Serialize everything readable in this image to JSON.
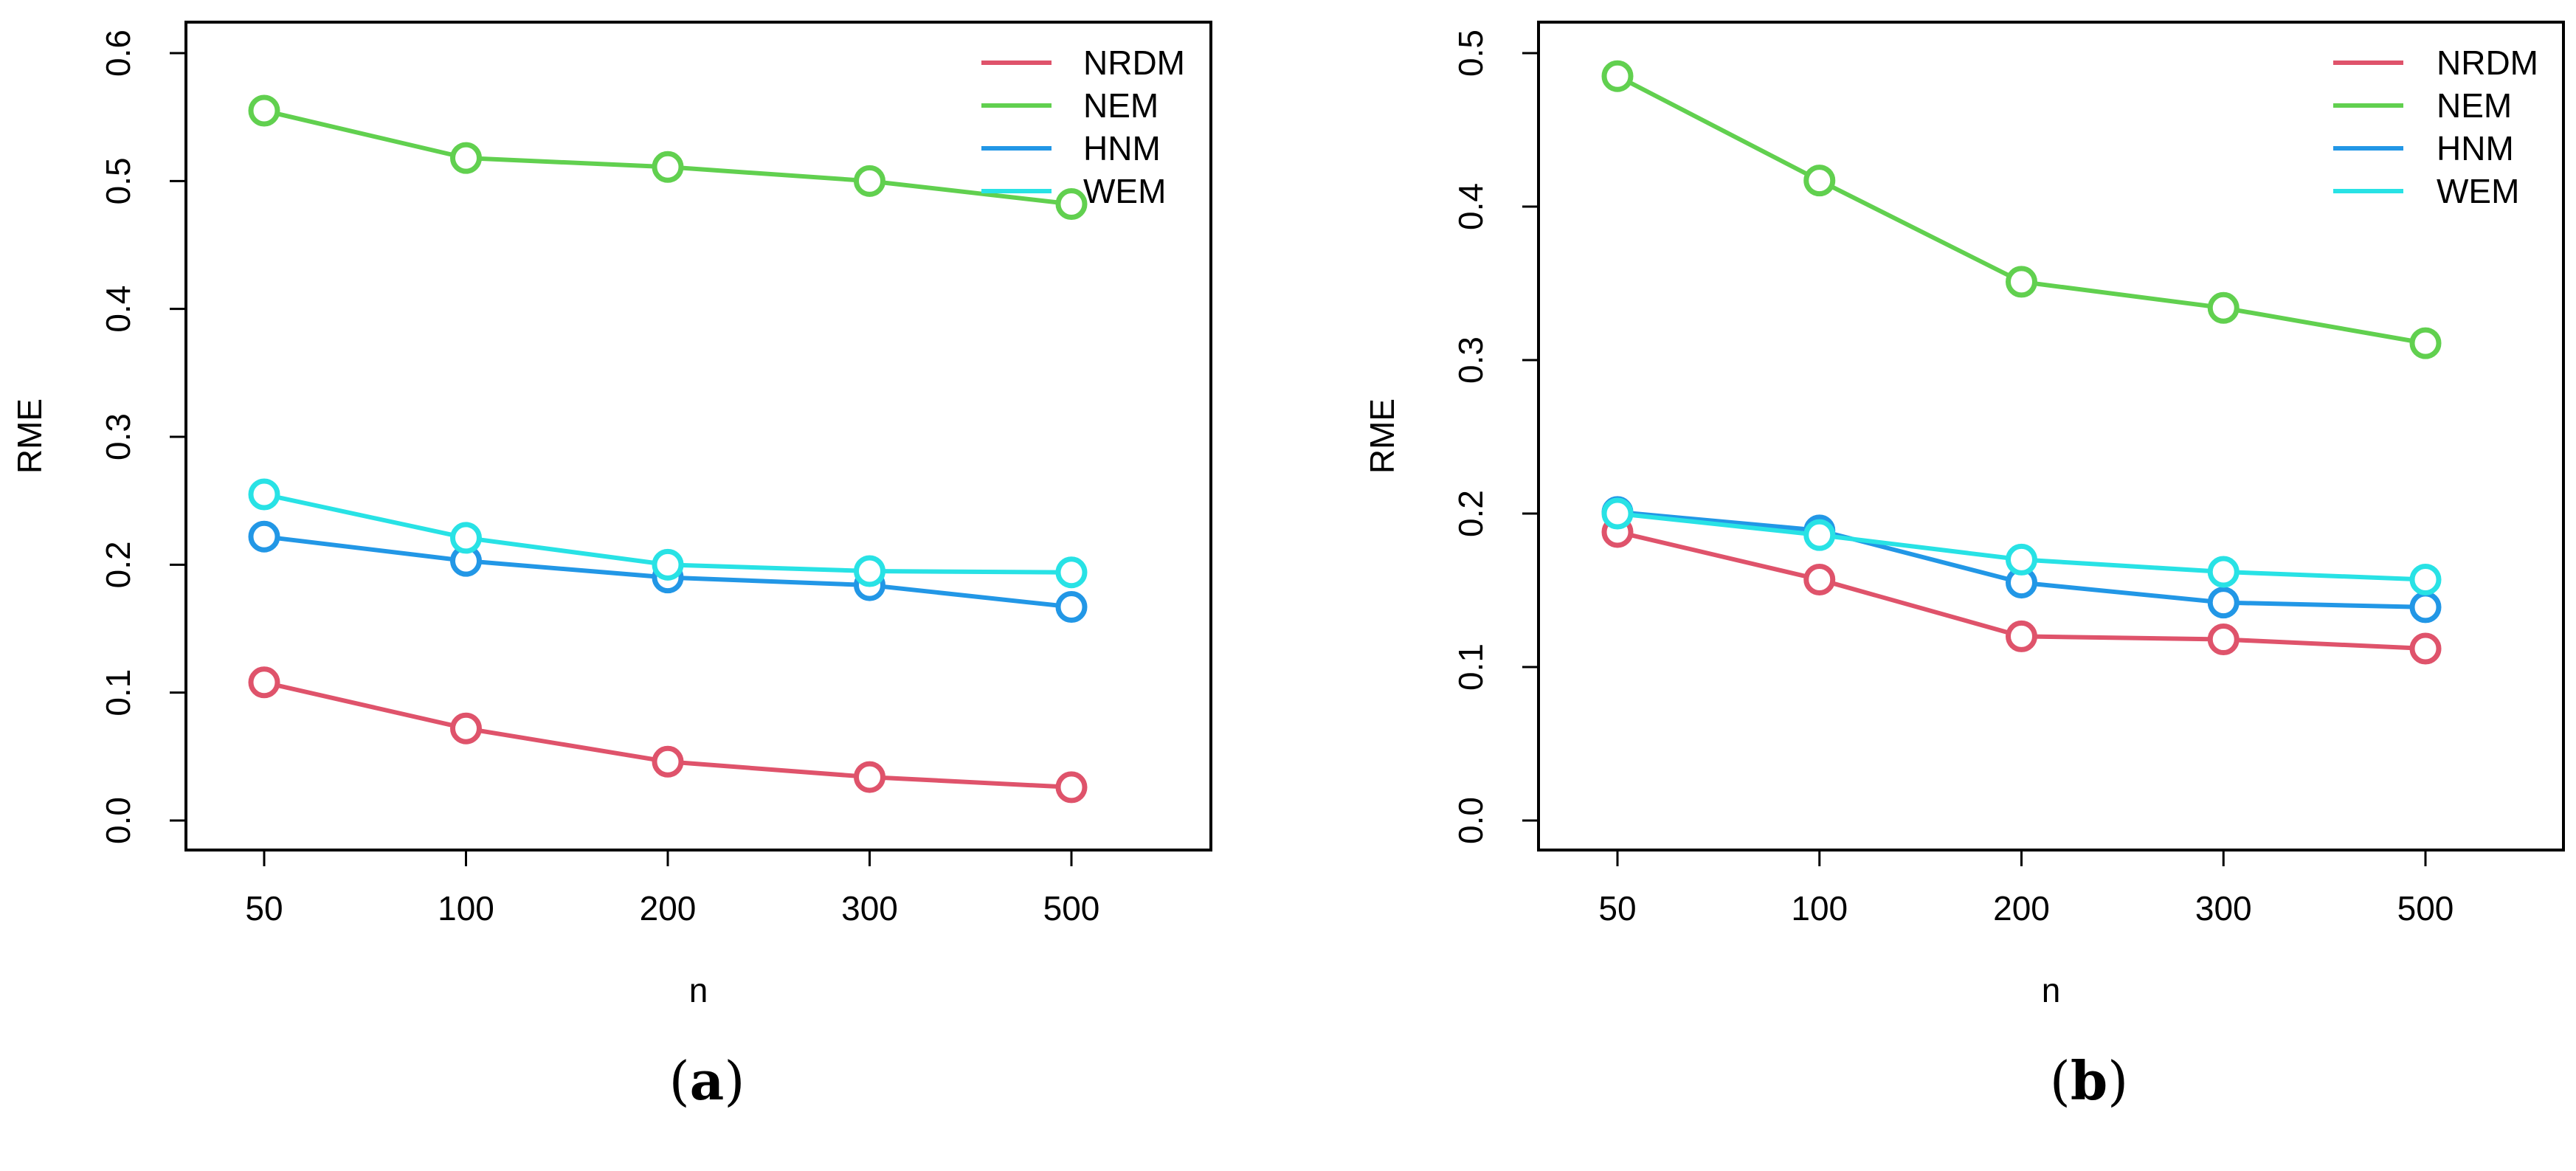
{
  "figure": {
    "colors": {
      "NRDM": "#DF536B",
      "NEM": "#61D04F",
      "HNM": "#2297E6",
      "WEM": "#28E2E5",
      "axis": "#000000"
    }
  },
  "chart_data": [
    {
      "type": "line",
      "panel_label": "a",
      "caption_open": "(",
      "caption_close": ")",
      "xlabel": "n",
      "ylabel": "RME",
      "categories": [
        "50",
        "100",
        "200",
        "300",
        "500"
      ],
      "ylim": [
        0.0,
        0.6
      ],
      "yticks": [
        0.0,
        0.1,
        0.2,
        0.3,
        0.4,
        0.5,
        0.6
      ],
      "ytick_labels": [
        "0.0",
        "0.1",
        "0.2",
        "0.3",
        "0.4",
        "0.5",
        "0.6"
      ],
      "legend_position": "top-right",
      "series": [
        {
          "name": "NRDM",
          "values": [
            0.108,
            0.072,
            0.046,
            0.034,
            0.026
          ]
        },
        {
          "name": "NEM",
          "values": [
            0.555,
            0.518,
            0.511,
            0.5,
            0.482
          ]
        },
        {
          "name": "HNM",
          "values": [
            0.222,
            0.203,
            0.19,
            0.184,
            0.167
          ]
        },
        {
          "name": "WEM",
          "values": [
            0.255,
            0.221,
            0.2,
            0.195,
            0.194
          ]
        }
      ]
    },
    {
      "type": "line",
      "panel_label": "b",
      "caption_open": "(",
      "caption_close": ")",
      "xlabel": "n",
      "ylabel": "RME",
      "categories": [
        "50",
        "100",
        "200",
        "300",
        "500"
      ],
      "ylim": [
        0.0,
        0.5
      ],
      "yticks": [
        0.0,
        0.1,
        0.2,
        0.3,
        0.4,
        0.5
      ],
      "ytick_labels": [
        "0.0",
        "0.1",
        "0.2",
        "0.3",
        "0.4",
        "0.5"
      ],
      "legend_position": "top-right",
      "series": [
        {
          "name": "NRDM",
          "values": [
            0.188,
            0.157,
            0.12,
            0.118,
            0.112
          ]
        },
        {
          "name": "NEM",
          "values": [
            0.485,
            0.417,
            0.351,
            0.334,
            0.311
          ]
        },
        {
          "name": "HNM",
          "values": [
            0.201,
            0.189,
            0.155,
            0.142,
            0.139
          ]
        },
        {
          "name": "WEM",
          "values": [
            0.2,
            0.186,
            0.17,
            0.162,
            0.157
          ]
        }
      ]
    }
  ]
}
